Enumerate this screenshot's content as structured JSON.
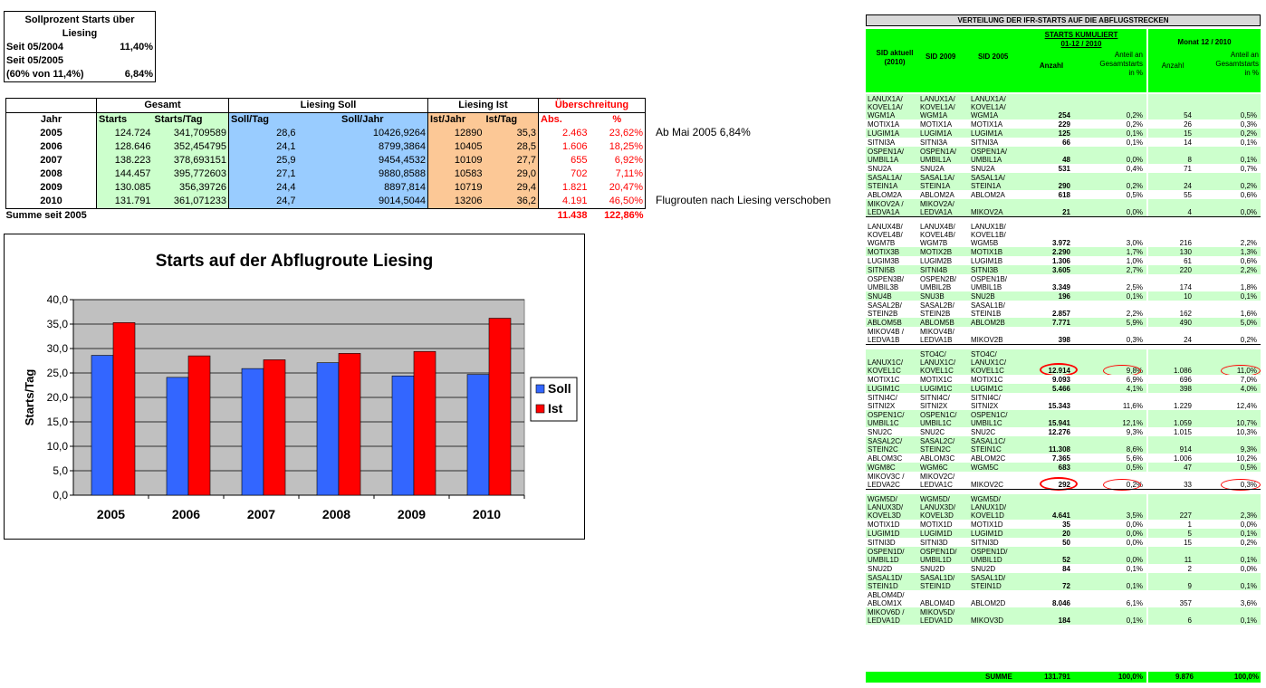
{
  "sollprozent": {
    "title_line1": "Sollprozent Starts über",
    "title_line2": "Liesing",
    "rows": [
      {
        "label": "Seit 05/2004",
        "value": "11,40%"
      },
      {
        "label": "Seit 05/2005",
        "value": ""
      },
      {
        "label": "(60% von 11,4%)",
        "value": "6,84%"
      }
    ]
  },
  "summary": {
    "group_headers": {
      "gesamt": "Gesamt",
      "soll": "Liesing Soll",
      "ist": "Liesing Ist",
      "ueber": "Überschreitung"
    },
    "col_headers": [
      "Jahr",
      "Starts",
      "Starts/Tag",
      "Soll/Tag",
      "Soll/Jahr",
      "Ist/Jahr",
      "Ist/Tag",
      "Abs.",
      "%"
    ],
    "rows": [
      {
        "jahr": "2005",
        "starts": "124.724",
        "starts_tag": "341,709589",
        "soll_tag": "28,6",
        "soll_jahr": "10426,9264",
        "ist_jahr": "12890",
        "ist_tag": "35,3",
        "abs": "2.463",
        "pct": "23,62%"
      },
      {
        "jahr": "2006",
        "starts": "128.646",
        "starts_tag": "352,454795",
        "soll_tag": "24,1",
        "soll_jahr": "8799,3864",
        "ist_jahr": "10405",
        "ist_tag": "28,5",
        "abs": "1.606",
        "pct": "18,25%"
      },
      {
        "jahr": "2007",
        "starts": "138.223",
        "starts_tag": "378,693151",
        "soll_tag": "25,9",
        "soll_jahr": "9454,4532",
        "ist_jahr": "10109",
        "ist_tag": "27,7",
        "abs": "655",
        "pct": "6,92%"
      },
      {
        "jahr": "2008",
        "starts": "144.457",
        "starts_tag": "395,772603",
        "soll_tag": "27,1",
        "soll_jahr": "9880,8588",
        "ist_jahr": "10583",
        "ist_tag": "29,0",
        "abs": "702",
        "pct": "7,11%"
      },
      {
        "jahr": "2009",
        "starts": "130.085",
        "starts_tag": "356,39726",
        "soll_tag": "24,4",
        "soll_jahr": "8897,814",
        "ist_jahr": "10719",
        "ist_tag": "29,4",
        "abs": "1.821",
        "pct": "20,47%"
      },
      {
        "jahr": "2010",
        "starts": "131.791",
        "starts_tag": "361,071233",
        "soll_tag": "24,7",
        "soll_jahr": "9014,5044",
        "ist_jahr": "13206",
        "ist_tag": "36,2",
        "abs": "4.191",
        "pct": "46,50%"
      }
    ],
    "sum_label": "Summe seit 2005",
    "sum_abs": "11.438",
    "sum_pct": "122,86%",
    "note_2005": "Ab Mai 2005 6,84%",
    "note_2010": "Flugrouten nach Liesing verschoben"
  },
  "chart_data": {
    "type": "bar",
    "title": "Starts auf der Abflugroute Liesing",
    "xlabel": "",
    "ylabel": "Starts/Tag",
    "categories": [
      "2005",
      "2006",
      "2007",
      "2008",
      "2009",
      "2010"
    ],
    "series": [
      {
        "name": "Soll",
        "color": "#3366ff",
        "values": [
          28.6,
          24.1,
          25.9,
          27.1,
          24.4,
          24.7
        ]
      },
      {
        "name": "Ist",
        "color": "#ff0000",
        "values": [
          35.3,
          28.5,
          27.7,
          29.0,
          29.4,
          36.2
        ]
      }
    ],
    "ylim": [
      0,
      40
    ],
    "yticks": [
      "0,0",
      "5,0",
      "10,0",
      "15,0",
      "20,0",
      "25,0",
      "30,0",
      "35,0",
      "40,0"
    ],
    "grid": true,
    "plot_background": "#c0c0c0",
    "legend": "right"
  },
  "sid_table": {
    "title": "VERTEILUNG DER IFR-STARTS AUF DIE ABFLUGSTRECKEN",
    "head": {
      "sid_aktuell": "SID aktuell\n(2010)",
      "sid_2009": "SID 2009",
      "sid_2005": "SID 2005",
      "kum": "STARTS KUMULIERT\n01-12 / 2010",
      "anzahl": "Anzahl",
      "anteil": "Anteil an\nGesamtstarts\nin %",
      "monat": "Monat 12 / 2010",
      "m_anzahl": "Anzahl",
      "m_anteil": "Anteil an\nGesamtstarts\nin %"
    },
    "rows": [
      {
        "a": "LANUX1A/\nKOVEL1A/\nWGM1A",
        "b": "LANUX1A/\nKOVEL1A/\nWGM1A",
        "c": "LANUX1A/\nKOVEL1A/\nWGM1A",
        "n": "254",
        "p": "0,2%",
        "mn": "54",
        "mp": "0,5%"
      },
      {
        "a": "MOTIX1A",
        "b": "MOTIX1A",
        "c": "MOTIX1A",
        "n": "229",
        "p": "0,2%",
        "mn": "26",
        "mp": "0,3%"
      },
      {
        "a": "LUGIM1A",
        "b": "LUGIM1A",
        "c": "LUGIM1A",
        "n": "125",
        "p": "0,1%",
        "mn": "15",
        "mp": "0,2%"
      },
      {
        "a": "SITNI3A",
        "b": "SITNI3A",
        "c": "SITNI3A",
        "n": "66",
        "p": "0,1%",
        "mn": "14",
        "mp": "0,1%"
      },
      {
        "a": "OSPEN1A/\nUMBIL1A",
        "b": "OSPEN1A/\nUMBIL1A",
        "c": "OSPEN1A/\nUMBIL1A",
        "n": "48",
        "p": "0,0%",
        "mn": "8",
        "mp": "0,1%"
      },
      {
        "a": "SNU2A",
        "b": "SNU2A",
        "c": "SNU2A",
        "n": "531",
        "p": "0,4%",
        "mn": "71",
        "mp": "0,7%"
      },
      {
        "a": "SASAL1A/\nSTEIN1A",
        "b": "SASAL1A/\nSTEIN1A",
        "c": "SASAL1A/\nSTEIN1A",
        "n": "290",
        "p": "0,2%",
        "mn": "24",
        "mp": "0,2%"
      },
      {
        "a": "ABLOM2A",
        "b": "ABLOM2A",
        "c": "ABLOM2A",
        "n": "618",
        "p": "0,5%",
        "mn": "55",
        "mp": "0,6%"
      },
      {
        "a": "MIKOV2A /\nLEDVA1A",
        "b": "MIKOV2A/\nLEDVA1A",
        "c": "MIKOV2A",
        "n": "21",
        "p": "0,0%",
        "mn": "4",
        "mp": "0,0%"
      },
      {
        "a": "LANUX4B/\nKOVEL4B/\nWGM7B",
        "b": "LANUX4B/\nKOVEL4B/\nWGM7B",
        "c": "LANUX1B/\nKOVEL1B/\nWGM5B",
        "n": "3.972",
        "p": "3,0%",
        "mn": "216",
        "mp": "2,2%"
      },
      {
        "a": "MOTIX3B",
        "b": "MOTIX2B",
        "c": "MOTIX1B",
        "n": "2.290",
        "p": "1,7%",
        "mn": "130",
        "mp": "1,3%"
      },
      {
        "a": "LUGIM3B",
        "b": "LUGIM2B",
        "c": "LUGIM1B",
        "n": "1.306",
        "p": "1,0%",
        "mn": "61",
        "mp": "0,6%"
      },
      {
        "a": "SITNI5B",
        "b": "SITNI4B",
        "c": "SITNI3B",
        "n": "3.605",
        "p": "2,7%",
        "mn": "220",
        "mp": "2,2%"
      },
      {
        "a": "OSPEN3B/\nUMBIL3B",
        "b": "OSPEN2B/\nUMBIL2B",
        "c": "OSPEN1B/\nUMBIL1B",
        "n": "3.349",
        "p": "2,5%",
        "mn": "174",
        "mp": "1,8%"
      },
      {
        "a": "SNU4B",
        "b": "SNU3B",
        "c": "SNU2B",
        "n": "196",
        "p": "0,1%",
        "mn": "10",
        "mp": "0,1%"
      },
      {
        "a": "SASAL2B/\nSTEIN2B",
        "b": "SASAL2B/\nSTEIN2B",
        "c": "SASAL1B/\nSTEIN1B",
        "n": "2.857",
        "p": "2,2%",
        "mn": "162",
        "mp": "1,6%"
      },
      {
        "a": "ABLOM5B",
        "b": "ABLOM5B",
        "c": "ABLOM2B",
        "n": "7.771",
        "p": "5,9%",
        "mn": "490",
        "mp": "5,0%"
      },
      {
        "a": "MIKOV4B /\nLEDVA1B",
        "b": "MIKOV4B/\nLEDVA1B",
        "c": "MIKOV2B",
        "n": "398",
        "p": "0,3%",
        "mn": "24",
        "mp": "0,2%"
      },
      {
        "a": "LANUX1C/\nKOVEL1C",
        "b": "STO4C/\nLANUX1C/\nKOVEL1C",
        "c": "STO4C/\nLANUX1C/\nKOVEL1C",
        "n": "12.914",
        "p": "9,8%",
        "mn": "1.086",
        "mp": "11,0%"
      },
      {
        "a": "MOTIX1C",
        "b": "MOTIX1C",
        "c": "MOTIX1C",
        "n": "9.093",
        "p": "6,9%",
        "mn": "696",
        "mp": "7,0%"
      },
      {
        "a": "LUGIM1C",
        "b": "LUGIM1C",
        "c": "LUGIM1C",
        "n": "5.466",
        "p": "4,1%",
        "mn": "398",
        "mp": "4,0%"
      },
      {
        "a": "SITNI4C/\nSITNI2X",
        "b": "SITNI4C/\nSITNI2X",
        "c": "SITNI4C/\nSITNI2X",
        "n": "15.343",
        "p": "11,6%",
        "mn": "1.229",
        "mp": "12,4%"
      },
      {
        "a": "OSPEN1C/\nUMBIL1C",
        "b": "OSPEN1C/\nUMBIL1C",
        "c": "OSPEN1C/\nUMBIL1C",
        "n": "15.941",
        "p": "12,1%",
        "mn": "1.059",
        "mp": "10,7%"
      },
      {
        "a": "SNU2C",
        "b": "SNU2C",
        "c": "SNU2C",
        "n": "12.276",
        "p": "9,3%",
        "mn": "1.015",
        "mp": "10,3%"
      },
      {
        "a": "SASAL2C/\nSTEIN2C",
        "b": "SASAL2C/\nSTEIN2C",
        "c": "SASAL1C/\nSTEIN1C",
        "n": "11.308",
        "p": "8,6%",
        "mn": "914",
        "mp": "9,3%"
      },
      {
        "a": "ABLOM3C",
        "b": "ABLOM3C",
        "c": "ABLOM2C",
        "n": "7.365",
        "p": "5,6%",
        "mn": "1.006",
        "mp": "10,2%"
      },
      {
        "a": "WGM8C",
        "b": "WGM6C",
        "c": "WGM5C",
        "n": "683",
        "p": "0,5%",
        "mn": "47",
        "mp": "0,5%"
      },
      {
        "a": "MIKOV3C /\nLEDVA2C",
        "b": "MIKOV2C/\nLEDVA1C",
        "c": "MIKOV2C",
        "n": "292",
        "p": "0,2%",
        "mn": "33",
        "mp": "0,3%"
      },
      {
        "a": "WGM5D/\nLANUX3D/\nKOVEL3D",
        "b": "WGM5D/\nLANUX3D/\nKOVEL3D",
        "c": "WGM5D/\nLANUX1D/\nKOVEL1D",
        "n": "4.641",
        "p": "3,5%",
        "mn": "227",
        "mp": "2,3%"
      },
      {
        "a": "MOTIX1D",
        "b": "MOTIX1D",
        "c": "MOTIX1D",
        "n": "35",
        "p": "0,0%",
        "mn": "1",
        "mp": "0,0%"
      },
      {
        "a": "LUGIM1D",
        "b": "LUGIM1D",
        "c": "LUGIM1D",
        "n": "20",
        "p": "0,0%",
        "mn": "5",
        "mp": "0,1%"
      },
      {
        "a": "SITNI3D",
        "b": "SITNI3D",
        "c": "SITNI3D",
        "n": "50",
        "p": "0,0%",
        "mn": "15",
        "mp": "0,2%"
      },
      {
        "a": "OSPEN1D/\nUMBIL1D",
        "b": "OSPEN1D/\nUMBIL1D",
        "c": "OSPEN1D/\nUMBIL1D",
        "n": "52",
        "p": "0,0%",
        "mn": "11",
        "mp": "0,1%"
      },
      {
        "a": "SNU2D",
        "b": "SNU2D",
        "c": "SNU2D",
        "n": "84",
        "p": "0,1%",
        "mn": "2",
        "mp": "0,0%"
      },
      {
        "a": "SASAL1D/\nSTEIN1D",
        "b": "SASAL1D/\nSTEIN1D",
        "c": "SASAL1D/\nSTEIN1D",
        "n": "72",
        "p": "0,1%",
        "mn": "9",
        "mp": "0,1%"
      },
      {
        "a": "ABLOM4D/\nABLOM1X",
        "b": "ABLOM4D",
        "c": "ABLOM2D",
        "n": "8.046",
        "p": "6,1%",
        "mn": "357",
        "mp": "3,6%"
      },
      {
        "a": "MIKOV6D /\nLEDVA1D",
        "b": "MIKOV5D/\nLEDVA1D",
        "c": "MIKOV3D",
        "n": "184",
        "p": "0,1%",
        "mn": "6",
        "mp": "0,1%"
      }
    ],
    "sum_label": "SUMME",
    "sum_n": "131.791",
    "sum_p": "100,0%",
    "sum_mn": "9.876",
    "sum_mp": "100,0%",
    "row_green": "#ccffcc",
    "row_white": "#ffffff",
    "header_green": "#00ff00"
  }
}
